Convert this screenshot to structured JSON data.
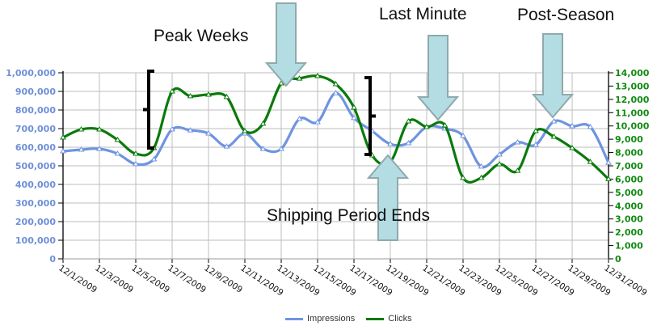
{
  "chart_data": {
    "type": "line",
    "title": "",
    "xlabel": "",
    "ylabel": "Impressions",
    "y2label": "Clicks",
    "x": [
      "12/1/2009",
      "12/2/2009",
      "12/3/2009",
      "12/4/2009",
      "12/5/2009",
      "12/6/2009",
      "12/7/2009",
      "12/8/2009",
      "12/9/2009",
      "12/10/2009",
      "12/11/2009",
      "12/12/2009",
      "12/13/2009",
      "12/14/2009",
      "12/15/2009",
      "12/16/2009",
      "12/17/2009",
      "12/18/2009",
      "12/19/2009",
      "12/20/2009",
      "12/21/2009",
      "12/22/2009",
      "12/23/2009",
      "12/24/2009",
      "12/25/2009",
      "12/26/2009",
      "12/27/2009",
      "12/28/2009",
      "12/29/2009",
      "12/30/2009",
      "12/31/2009"
    ],
    "x_tick_labels": [
      "12/1/2009",
      "12/3/2009",
      "12/5/2009",
      "12/7/2009",
      "12/9/2009",
      "12/11/2009",
      "12/13/2009",
      "12/15/2009",
      "12/17/2009",
      "12/19/2009",
      "12/21/2009",
      "12/23/2009",
      "12/25/2009",
      "12/27/2009",
      "12/29/2009",
      "12/31/2009"
    ],
    "series": [
      {
        "name": "Impressions",
        "axis": "left",
        "color": "#6f94e0",
        "values": [
          578000,
          587000,
          591000,
          565000,
          509000,
          535000,
          696000,
          691000,
          674000,
          604000,
          674000,
          591000,
          591000,
          752000,
          735000,
          891000,
          757000,
          687000,
          617000,
          622000,
          709000,
          700000,
          661000,
          496000,
          561000,
          626000,
          613000,
          739000,
          713000,
          709000,
          517000
        ]
      },
      {
        "name": "Clicks",
        "axis": "right",
        "color": "#0a7a0a",
        "values": [
          9130,
          9740,
          9740,
          8950,
          7910,
          8340,
          12600,
          12240,
          12360,
          12180,
          9620,
          10170,
          13210,
          13570,
          13760,
          13150,
          11380,
          7790,
          7300,
          10350,
          9920,
          10040,
          6090,
          6090,
          7120,
          6630,
          9620,
          9190,
          8340,
          7300,
          6000
        ]
      }
    ],
    "ylim": [
      0,
      1000000
    ],
    "y_ticks": [
      "0",
      "100,000",
      "200,000",
      "300,000",
      "400,000",
      "500,000",
      "600,000",
      "700,000",
      "800,000",
      "900,000",
      "1,000,000"
    ],
    "y2lim": [
      0,
      14000
    ],
    "y2_ticks": [
      "0",
      "1,000",
      "2,000",
      "3,000",
      "4,000",
      "5,000",
      "6,000",
      "7,000",
      "8,000",
      "9,000",
      "10,000",
      "11,000",
      "12,000",
      "13,000",
      "14,000"
    ],
    "grid": true,
    "legend_position": "bottom",
    "annotations": [
      {
        "text": "Peak Weeks",
        "type": "label+bracket",
        "range": [
          "12/6/2009",
          "12/18/2009"
        ]
      },
      {
        "text": "Last Minute",
        "type": "down-arrow",
        "at": "12/21/2009"
      },
      {
        "text": "Post-Season",
        "type": "down-arrow",
        "at": "12/27/2009"
      },
      {
        "text": "Shipping Period Ends",
        "type": "up-arrow",
        "at": "12/19/2009"
      },
      {
        "text": "",
        "type": "down-arrow",
        "at": "12/13/2009"
      }
    ]
  },
  "colors": {
    "impressions": "#6f94e0",
    "clicks": "#0a7a0a",
    "left_axis_text": "#6f8fd8",
    "right_axis_text": "#128a12",
    "arrow_fill": "#b3dde2",
    "arrow_stroke": "#8fa9ad",
    "grid": "#bdbdbd"
  },
  "annotations": {
    "peak_weeks": "Peak Weeks",
    "last_minute": "Last Minute",
    "post_season": "Post-Season",
    "shipping_period_ends": "Shipping Period Ends"
  },
  "legend": {
    "impressions": "Impressions",
    "clicks": "Clicks"
  }
}
